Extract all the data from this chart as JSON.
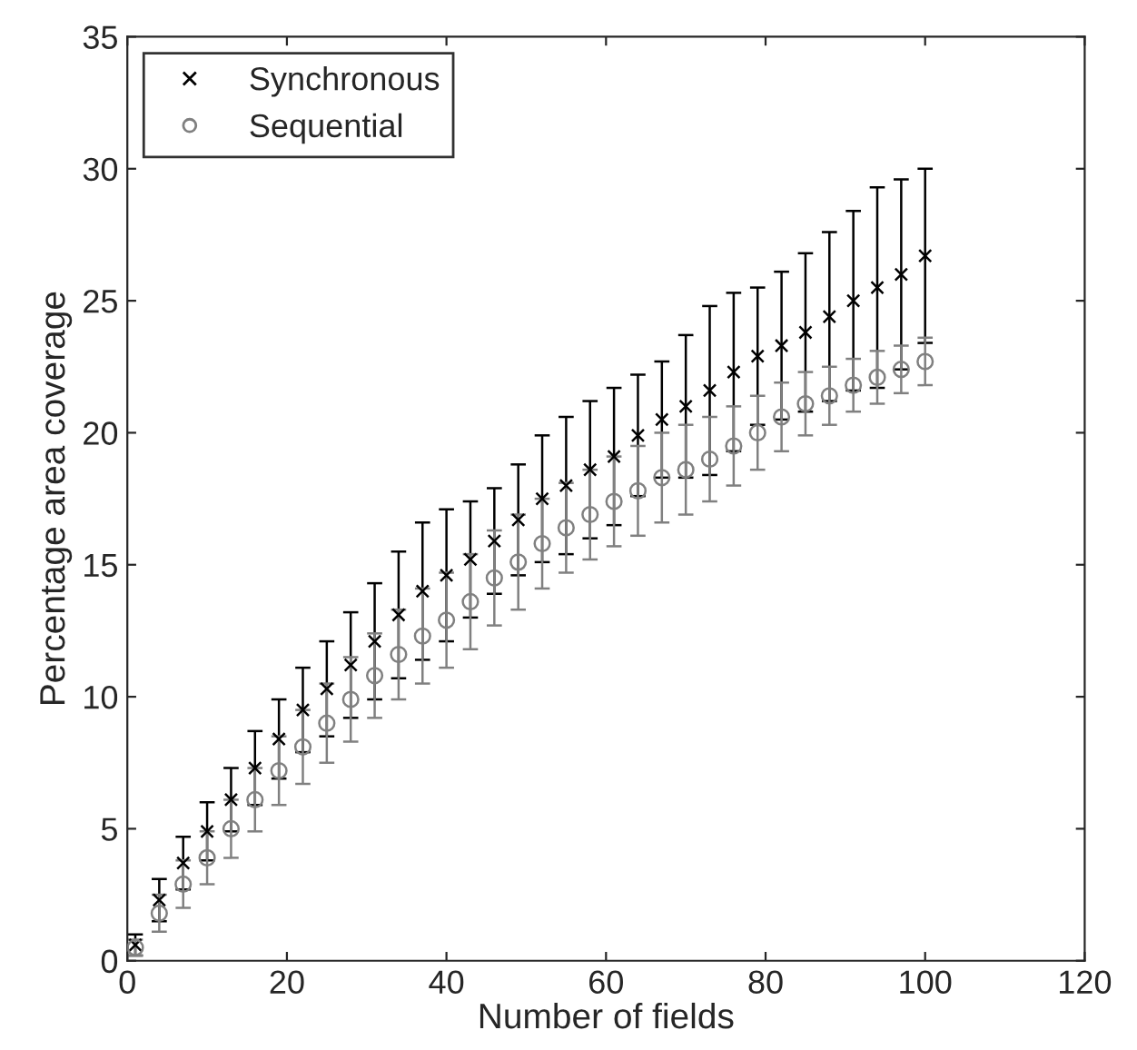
{
  "chart_data": {
    "type": "scatter",
    "xlabel": "Number of fields",
    "ylabel": "Percentage area coverage",
    "x": [
      1,
      4,
      7,
      10,
      13,
      16,
      19,
      22,
      25,
      28,
      31,
      34,
      37,
      40,
      43,
      46,
      49,
      52,
      55,
      58,
      61,
      64,
      67,
      70,
      73,
      76,
      79,
      82,
      85,
      88,
      91,
      94,
      97,
      100
    ],
    "series": [
      {
        "name": "Synchronous",
        "color": "#000000",
        "marker": "cross",
        "values": [
          0.6,
          2.3,
          3.7,
          4.9,
          6.1,
          7.3,
          8.4,
          9.5,
          10.3,
          11.2,
          12.1,
          13.1,
          14.0,
          14.6,
          15.2,
          15.9,
          16.7,
          17.5,
          18.0,
          18.6,
          19.1,
          19.9,
          20.5,
          21.0,
          21.6,
          22.3,
          22.9,
          23.3,
          23.8,
          24.4,
          25.0,
          25.5,
          26.0,
          26.7
        ],
        "errors": [
          0.4,
          0.8,
          1.0,
          1.1,
          1.2,
          1.4,
          1.5,
          1.6,
          1.8,
          2.0,
          2.2,
          2.4,
          2.6,
          2.5,
          2.2,
          2.0,
          2.1,
          2.4,
          2.6,
          2.6,
          2.6,
          2.3,
          2.2,
          2.7,
          3.2,
          3.0,
          2.6,
          2.8,
          3.0,
          3.2,
          3.4,
          3.8,
          3.6,
          3.3
        ]
      },
      {
        "name": "Sequential",
        "color": "#808080",
        "marker": "circle",
        "values": [
          0.5,
          1.8,
          2.9,
          3.9,
          5.0,
          6.1,
          7.2,
          8.1,
          9.0,
          9.9,
          10.8,
          11.6,
          12.3,
          12.9,
          13.6,
          14.5,
          15.1,
          15.8,
          16.4,
          16.9,
          17.4,
          17.8,
          18.3,
          18.6,
          19.0,
          19.5,
          20.0,
          20.6,
          21.1,
          21.4,
          21.8,
          22.1,
          22.4,
          22.7
        ],
        "errors": [
          0.3,
          0.7,
          0.9,
          1.0,
          1.1,
          1.2,
          1.3,
          1.4,
          1.5,
          1.6,
          1.6,
          1.7,
          1.8,
          1.8,
          1.8,
          1.8,
          1.8,
          1.7,
          1.7,
          1.7,
          1.7,
          1.7,
          1.7,
          1.7,
          1.6,
          1.5,
          1.4,
          1.3,
          1.2,
          1.1,
          1.0,
          1.0,
          0.9,
          0.9
        ]
      }
    ],
    "xlim": [
      0,
      120
    ],
    "xticks": [
      0,
      20,
      40,
      60,
      80,
      100,
      120
    ],
    "ylim": [
      0,
      35
    ],
    "yticks": [
      0,
      5,
      10,
      15,
      20,
      25,
      30,
      35
    ],
    "legend": "top left",
    "grid": false
  }
}
